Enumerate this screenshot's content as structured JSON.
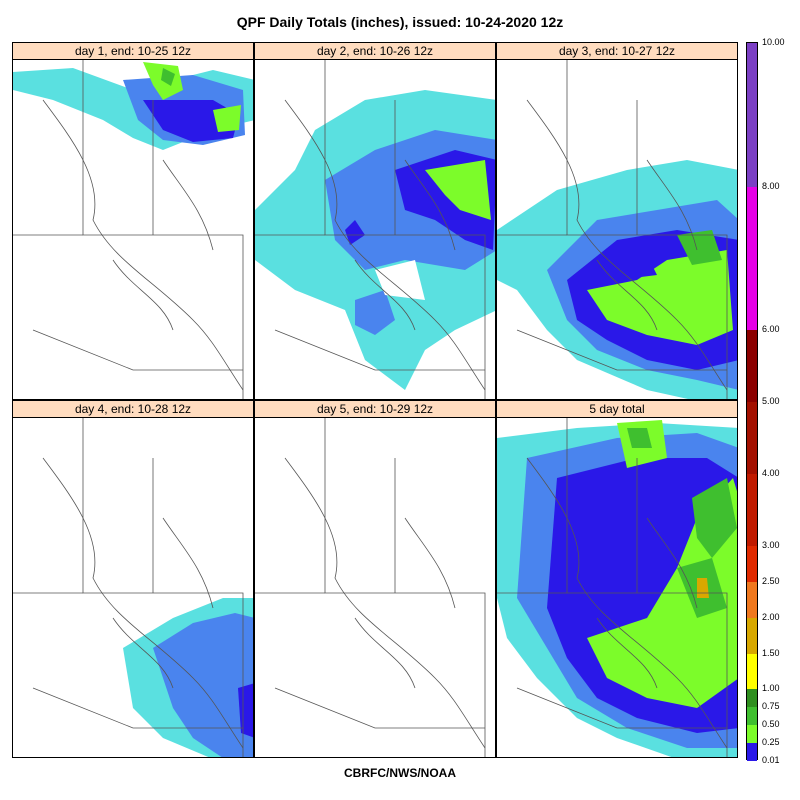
{
  "title": "QPF Daily Totals (inches),  issued: 10-24-2020 12z",
  "footer": "CBRFC/NWS/NOAA",
  "panels": [
    {
      "label": "day 1, end: 10-25 12z"
    },
    {
      "label": "day 2, end: 10-26 12z"
    },
    {
      "label": "day 3, end: 10-27 12z"
    },
    {
      "label": "day 4, end: 10-28 12z"
    },
    {
      "label": "day 5, end: 10-29 12z"
    },
    {
      "label": "5 day total"
    }
  ],
  "legend": {
    "labels": [
      "10.00",
      "8.00",
      "6.00",
      "5.00",
      "4.00",
      "3.00",
      "2.50",
      "2.00",
      "1.50",
      "1.00",
      "0.75",
      "0.50",
      "0.25",
      "0.01"
    ],
    "colors": [
      "#7b3fc4",
      "#e600e6",
      "#8b0000",
      "#a31000",
      "#c01a00",
      "#e02a00",
      "#f0781e",
      "#d8a800",
      "#ffff00",
      "#2f8f1f",
      "#3fbf2f",
      "#7cfc2a",
      "#2a18e8",
      "#4a84ee",
      "#5ae0e0"
    ],
    "color_named": {
      "0.01-0.25": "#5ae0e0",
      "0.25-0.50": "#4a84ee",
      "0.50-0.75": "#2a18e8",
      "0.75-1.00": "#7cfc2a",
      "1.00-1.50": "#3fbf2f"
    }
  }
}
